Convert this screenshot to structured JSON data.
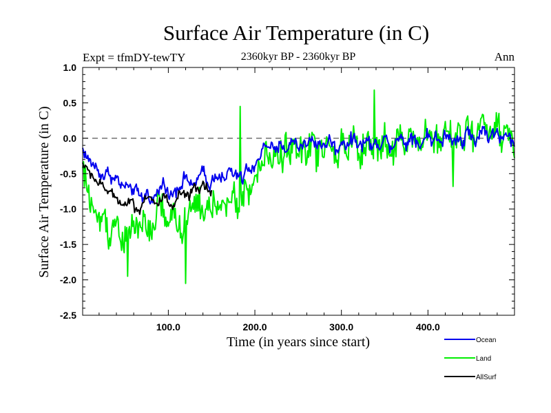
{
  "chart_data": {
    "type": "line",
    "title": "Surface Air Temperature (in C)",
    "subtitle": "2360kyr BP - 2360kyr BP",
    "left_label": "Expt = tfmDY-tewTY",
    "right_label": "Ann",
    "xlabel": "Time (in years since start)",
    "ylabel": "Surface Air Temperature (in C)",
    "xlim": [
      1,
      500
    ],
    "ylim": [
      -2.5,
      1.0
    ],
    "x_ticks": [
      100,
      200,
      300,
      400
    ],
    "x_tick_labels": [
      "100.0",
      "200.0",
      "300.0",
      "400.0"
    ],
    "y_ticks": [
      1.0,
      0.5,
      0.0,
      -0.5,
      -1.0,
      -1.5,
      -2.0,
      -2.5
    ],
    "y_tick_labels": [
      "1.0",
      "0.5",
      "0.0",
      "-0.5",
      "-1.0",
      "-1.5",
      "-2.0",
      "-2.5"
    ],
    "reference_line": 0.0,
    "legend_position": "bottom-right",
    "series": [
      {
        "name": "Ocean",
        "color": "#0000ee",
        "x_start": 1,
        "x_end": 500,
        "values": [
          -0.15,
          -0.28,
          -0.35,
          -0.4,
          -0.5,
          -0.55,
          -0.45,
          -0.6,
          -0.55,
          -0.7,
          -0.65,
          -0.75,
          -0.7,
          -0.8,
          -0.85,
          -0.75,
          -0.9,
          -0.8,
          -0.7,
          -0.6,
          -0.85,
          -0.75,
          -0.7,
          -0.65,
          -0.5,
          -0.7,
          -0.62,
          -0.55,
          -0.45,
          -0.68,
          -0.6,
          -0.5,
          -0.55,
          -0.62,
          -0.4,
          -0.55,
          -0.5,
          -0.6,
          -0.4,
          -0.5,
          -0.35,
          -0.25,
          -0.12,
          -0.08,
          -0.15,
          -0.2,
          -0.05,
          -0.18,
          -0.1,
          0.0,
          -0.15,
          -0.05,
          -0.12,
          0.02,
          -0.1,
          -0.05,
          -0.15,
          0.0,
          -0.08,
          -0.2,
          -0.02,
          -0.1,
          -0.05,
          0.03,
          -0.12,
          -0.08,
          0.0,
          -0.15,
          -0.05,
          -0.1,
          0.02,
          -0.08,
          -0.12,
          0.05,
          -0.02,
          -0.1,
          0.05,
          0.0,
          -0.12,
          -0.02,
          0.08,
          -0.05,
          0.02,
          -0.1,
          0.1,
          0.0,
          -0.05,
          0.05,
          -0.08,
          0.12,
          0.02,
          -0.05,
          0.08,
          0.15,
          0.0,
          0.05,
          0.1,
          -0.05,
          0.05,
          0.0,
          -0.12
        ]
      },
      {
        "name": "Land",
        "color": "#00ee00",
        "x_start": 1,
        "x_end": 500,
        "values": [
          -0.45,
          -0.7,
          -0.9,
          -1.1,
          -1.2,
          -1.0,
          -1.4,
          -1.25,
          -1.15,
          -1.4,
          -1.5,
          -1.3,
          -1.2,
          -1.35,
          -1.1,
          -1.25,
          -1.5,
          -1.05,
          -0.8,
          -1.2,
          -1.3,
          -0.95,
          -1.15,
          -1.4,
          -1.2,
          -1.05,
          -0.9,
          -0.85,
          -1.2,
          -0.95,
          -1.0,
          -0.9,
          -0.85,
          -1.05,
          -0.95,
          -0.8,
          -1.0,
          -0.85,
          -0.6,
          -0.8,
          -0.55,
          -0.45,
          -0.3,
          -0.2,
          -0.35,
          -0.15,
          -0.3,
          -0.1,
          -0.25,
          -0.05,
          -0.3,
          -0.1,
          -0.2,
          0.05,
          -0.25,
          -0.1,
          -0.3,
          0.0,
          -0.2,
          -0.35,
          0.05,
          -0.2,
          -0.1,
          0.1,
          -0.3,
          -0.15,
          0.0,
          -0.25,
          -0.05,
          -0.15,
          0.05,
          -0.2,
          -0.3,
          0.15,
          0.0,
          -0.2,
          0.15,
          0.05,
          -0.25,
          0.0,
          0.2,
          -0.1,
          0.05,
          -0.2,
          0.25,
          0.0,
          -0.1,
          0.15,
          -0.15,
          0.3,
          0.05,
          -0.1,
          0.2,
          0.35,
          -0.05,
          0.1,
          0.2,
          -0.1,
          0.1,
          0.0,
          -0.25
        ]
      },
      {
        "name": "AllSurf",
        "color": "#000000",
        "x_start": 1,
        "x_end": 150,
        "values": [
          -0.35,
          -0.45,
          -0.5,
          -0.6,
          -0.65,
          -0.7,
          -0.75,
          -0.8,
          -0.85,
          -0.9,
          -0.95,
          -0.85,
          -0.95,
          -1.05,
          -0.9,
          -0.8,
          -0.85,
          -0.95,
          -0.9,
          -0.8,
          -0.95,
          -1.0,
          -0.85,
          -0.75,
          -0.85,
          -0.8,
          -0.7,
          -0.75,
          -0.65,
          -0.7,
          -0.75
        ]
      }
    ],
    "extremes": [
      {
        "series": "Land",
        "x": 53,
        "y": -1.95
      },
      {
        "series": "Land",
        "x": 120,
        "y": -2.05
      },
      {
        "series": "Land",
        "x": 338,
        "y": 0.68
      },
      {
        "series": "Land",
        "x": 429,
        "y": -0.68
      },
      {
        "series": "Land",
        "x": 183,
        "y": 0.45
      }
    ]
  }
}
